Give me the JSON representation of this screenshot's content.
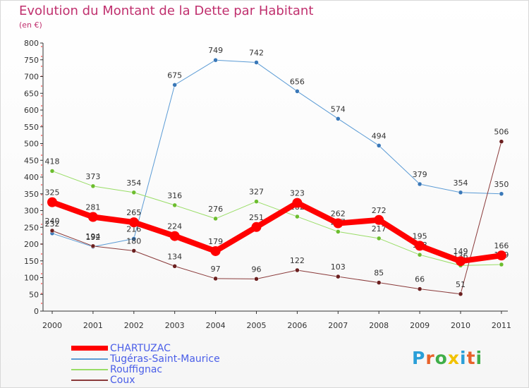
{
  "header": {
    "title": "Evolution du Montant de la Dette par Habitant",
    "subtitle": "(en €)"
  },
  "logo": {
    "text": "Proxiti",
    "colors": [
      "#2a9fd8",
      "#e8622a",
      "#3fae49",
      "#f2c200",
      "#2a9fd8",
      "#e8622a",
      "#3fae49"
    ]
  },
  "chart_data": {
    "type": "line",
    "x": [
      "2000",
      "2001",
      "2002",
      "2003",
      "2004",
      "2005",
      "2006",
      "2007",
      "2008",
      "2009",
      "2010",
      "2011"
    ],
    "ylim": [
      0,
      800
    ],
    "yticks": [
      0,
      50,
      100,
      150,
      200,
      250,
      300,
      350,
      400,
      450,
      500,
      550,
      600,
      650,
      700,
      750,
      800
    ],
    "grid": false,
    "legend_position": "bottom-left",
    "series": [
      {
        "name": "Tugéras-Saint-Maurice",
        "color": "#5b9bd5",
        "marker": "#3a78b8",
        "width": 1,
        "values": [
          232,
          192,
          216,
          675,
          749,
          742,
          656,
          574,
          494,
          379,
          354,
          350
        ]
      },
      {
        "name": "Rouffignac",
        "color": "#99dd66",
        "marker": "#6cbd2e",
        "width": 1,
        "values": [
          418,
          373,
          354,
          316,
          276,
          327,
          282,
          237,
          217,
          168,
          136,
          139
        ]
      },
      {
        "name": "Coux",
        "color": "#8a3a3a",
        "marker": "#6b1f1f",
        "width": 1,
        "values": [
          240,
          194,
          180,
          134,
          97,
          96,
          122,
          103,
          85,
          66,
          51,
          506
        ]
      },
      {
        "name": "CHARTUZAC",
        "color": "#ff0000",
        "marker": "#ff0000",
        "width": 8,
        "values": [
          325,
          281,
          265,
          224,
          179,
          251,
          323,
          262,
          272,
          195,
          149,
          166
        ]
      }
    ],
    "legend": [
      "CHARTUZAC",
      "Tugéras-Saint-Maurice",
      "Rouffignac",
      "Coux"
    ]
  }
}
